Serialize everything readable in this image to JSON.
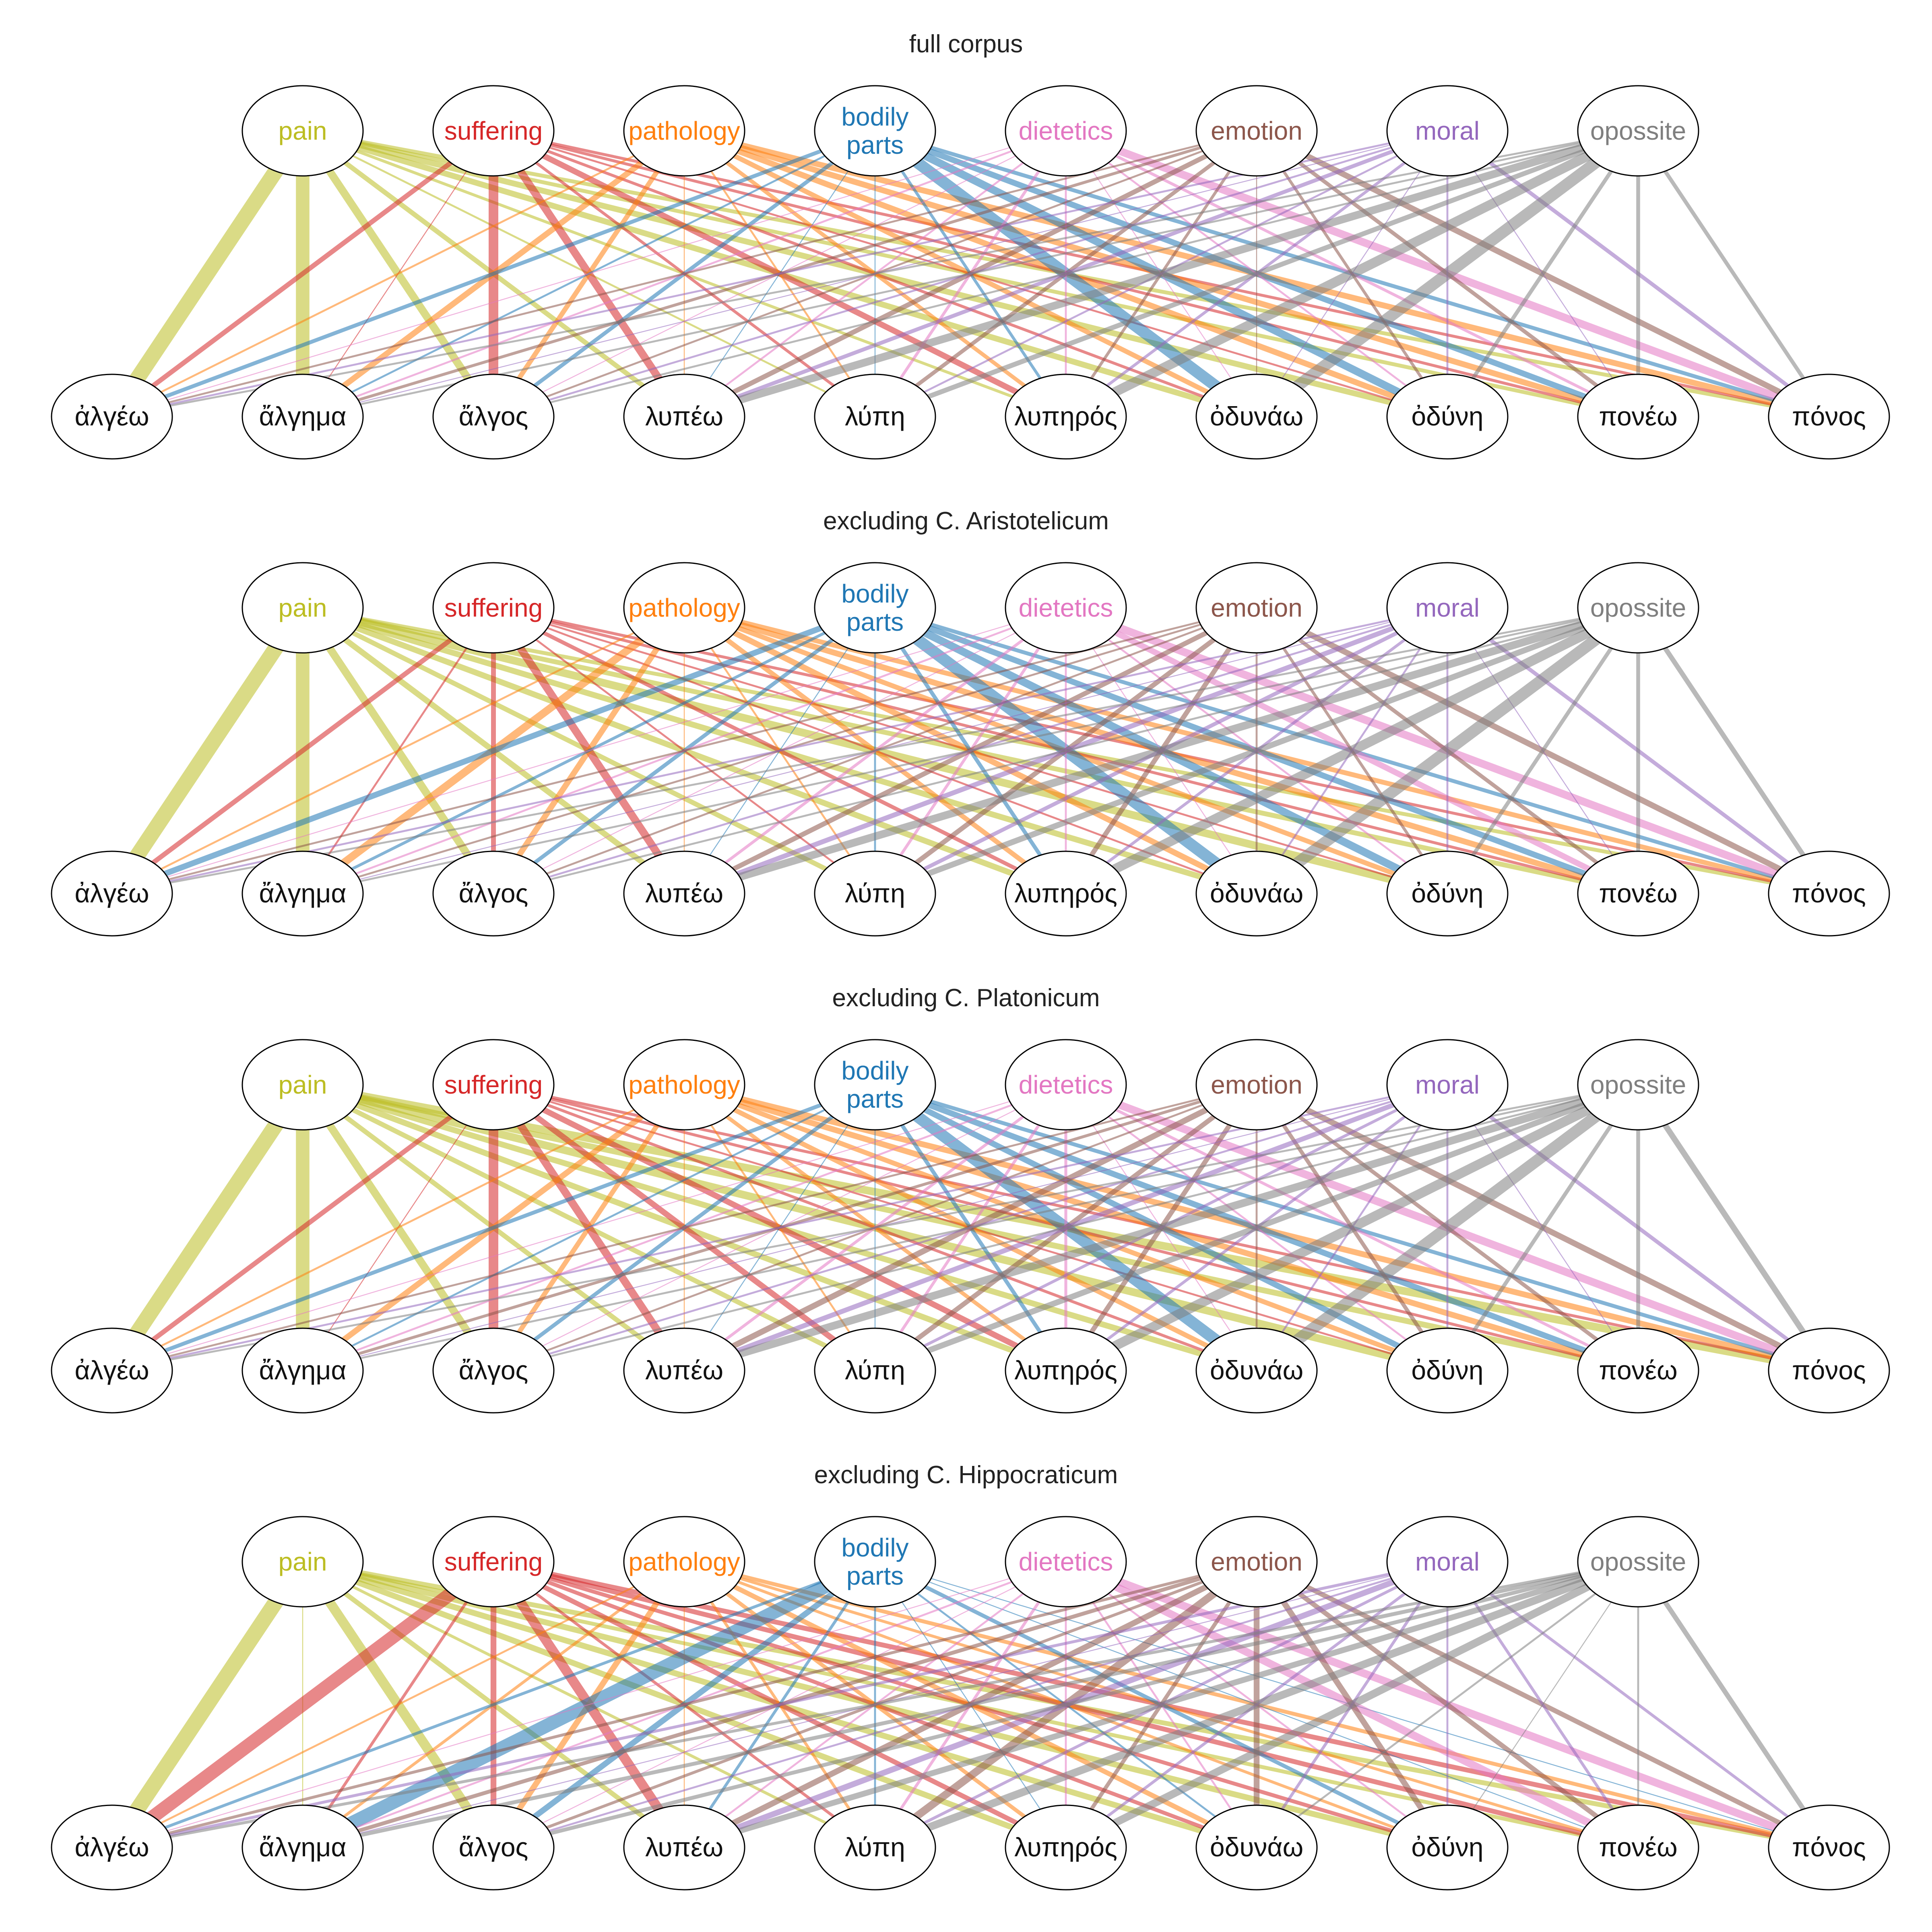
{
  "panels": [
    {
      "title": "full corpus"
    },
    {
      "title": "excluding C. Aristotelicum"
    },
    {
      "title": "excluding C. Platonicum"
    },
    {
      "title": "excluding C. Hippocraticum"
    }
  ],
  "categories": [
    {
      "id": "pain",
      "lines": [
        "pain"
      ],
      "color": "#bcbd22"
    },
    {
      "id": "suffering",
      "lines": [
        "suffering"
      ],
      "color": "#d62728"
    },
    {
      "id": "pathology",
      "lines": [
        "pathology"
      ],
      "color": "#ff7f0e"
    },
    {
      "id": "bodily-parts",
      "lines": [
        "bodily",
        "parts"
      ],
      "color": "#1f77b4"
    },
    {
      "id": "dietetics",
      "lines": [
        "dietetics"
      ],
      "color": "#e377c2"
    },
    {
      "id": "emotion",
      "lines": [
        "emotion"
      ],
      "color": "#8c564b"
    },
    {
      "id": "moral",
      "lines": [
        "moral"
      ],
      "color": "#9467bd"
    },
    {
      "id": "opossite",
      "lines": [
        "opossite"
      ],
      "color": "#7f7f7f"
    }
  ],
  "words": [
    "ἀλγέω",
    "ἄλγημα",
    "ἄλγος",
    "λυπέω",
    "λύπη",
    "λυπηρός",
    "ὀδυνάω",
    "ὀδύνη",
    "πονέω",
    "πόνος"
  ],
  "edge_weights": [
    [
      [
        16,
        14,
        8,
        5,
        2,
        3,
        6,
        6,
        4,
        4
      ],
      [
        5,
        1,
        10,
        8,
        3,
        6,
        3,
        2,
        3,
        3
      ],
      [
        2,
        6,
        5,
        1,
        2,
        4,
        5,
        6,
        6,
        6
      ],
      [
        4,
        2,
        4,
        1,
        1,
        3,
        12,
        8,
        6,
        4
      ],
      [
        1,
        2,
        1,
        2,
        3,
        2,
        1,
        2,
        3,
        8
      ],
      [
        2,
        3,
        2,
        5,
        4,
        3,
        1,
        3,
        4,
        6
      ],
      [
        2,
        1,
        2,
        4,
        2,
        3,
        1,
        2,
        1,
        4
      ],
      [
        2,
        2,
        2,
        8,
        5,
        10,
        12,
        4,
        4,
        4
      ]
    ],
    [
      [
        16,
        14,
        8,
        6,
        5,
        6,
        6,
        8,
        5,
        4
      ],
      [
        5,
        2,
        5,
        8,
        2,
        4,
        2,
        2,
        3,
        3
      ],
      [
        2,
        8,
        6,
        1,
        2,
        5,
        6,
        5,
        6,
        5
      ],
      [
        6,
        3,
        4,
        1,
        2,
        4,
        12,
        8,
        6,
        4
      ],
      [
        1,
        2,
        1,
        3,
        3,
        2,
        1,
        2,
        6,
        8
      ],
      [
        2,
        2,
        2,
        5,
        5,
        5,
        2,
        3,
        4,
        6
      ],
      [
        2,
        1,
        2,
        5,
        4,
        3,
        2,
        2,
        1,
        4
      ],
      [
        2,
        2,
        2,
        8,
        6,
        10,
        12,
        4,
        4,
        5
      ]
    ],
    [
      [
        16,
        14,
        8,
        5,
        5,
        6,
        6,
        8,
        6,
        8
      ],
      [
        5,
        1,
        10,
        8,
        6,
        6,
        3,
        2,
        3,
        3
      ],
      [
        2,
        6,
        5,
        1,
        2,
        4,
        5,
        5,
        6,
        6
      ],
      [
        4,
        2,
        4,
        1,
        1,
        4,
        12,
        6,
        6,
        4
      ],
      [
        1,
        2,
        1,
        3,
        3,
        3,
        1,
        2,
        3,
        8
      ],
      [
        2,
        3,
        2,
        6,
        5,
        5,
        2,
        4,
        4,
        6
      ],
      [
        2,
        1,
        2,
        5,
        3,
        3,
        2,
        2,
        1,
        4
      ],
      [
        2,
        2,
        2,
        8,
        6,
        10,
        12,
        4,
        4,
        6
      ]
    ],
    [
      [
        16,
        1,
        10,
        5,
        3,
        6,
        6,
        6,
        4,
        5
      ],
      [
        14,
        3,
        6,
        10,
        3,
        5,
        4,
        4,
        5,
        5
      ],
      [
        2,
        3,
        6,
        1,
        3,
        4,
        5,
        3,
        3,
        4
      ],
      [
        3,
        14,
        6,
        3,
        2,
        1,
        2,
        4,
        1,
        1
      ],
      [
        1,
        2,
        1,
        2,
        3,
        2,
        2,
        2,
        8,
        8
      ],
      [
        3,
        4,
        3,
        6,
        8,
        4,
        6,
        6,
        5,
        5
      ],
      [
        3,
        1,
        2,
        6,
        3,
        3,
        3,
        2,
        3,
        3
      ],
      [
        3,
        4,
        4,
        6,
        8,
        8,
        2,
        1,
        2,
        5
      ]
    ]
  ]
}
